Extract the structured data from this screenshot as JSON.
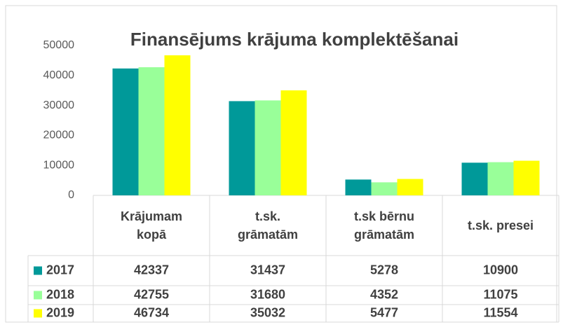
{
  "chart_data": {
    "type": "bar",
    "title": "Finansējums krājuma komplektēšanai",
    "categories": [
      "Krājumam kopā",
      "t.sk. grāmatām",
      "t.sk bērnu grāmatām",
      "t.sk. presei"
    ],
    "series": [
      {
        "name": "2017",
        "color": "#009999",
        "values": [
          42337,
          31437,
          5278,
          10900
        ]
      },
      {
        "name": "2018",
        "color": "#99ff99",
        "values": [
          42755,
          31680,
          4352,
          11075
        ]
      },
      {
        "name": "2019",
        "color": "#ffff00",
        "values": [
          46734,
          35032,
          5477,
          11554
        ]
      }
    ],
    "ylim": [
      0,
      50000
    ],
    "yticks": [
      0,
      10000,
      20000,
      30000,
      40000,
      50000
    ],
    "grid": false,
    "legend": "table"
  }
}
